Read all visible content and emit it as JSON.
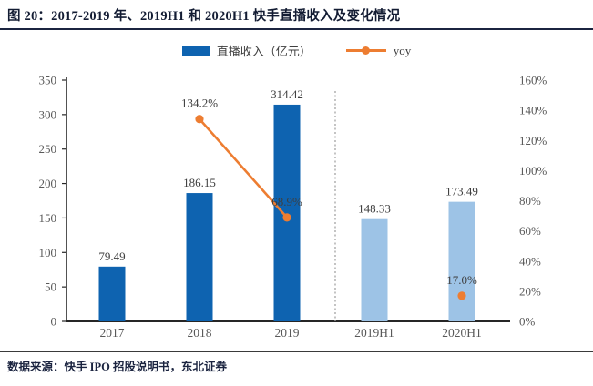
{
  "title": "图 20：2017-2019 年、2019H1 和 2020H1 快手直播收入及变化情况",
  "source_note": "数据来源：快手 IPO 招股说明书，东北证券",
  "legend": {
    "bar_label": "直播收入（亿元）",
    "line_label": "yoy"
  },
  "colors": {
    "bar_dark": "#0e63b0",
    "bar_light": "#9dc3e6",
    "line_orange": "#ed7d31",
    "axis_text": "#595959",
    "value_text": "#3f3f3f",
    "title_text": "#131c33",
    "rule_navy": "#1b2440",
    "separator_gray": "#a3a3a3",
    "axis_line": "#262626"
  },
  "chart_data": {
    "type": "bar",
    "title": "图 20：2017-2019 年、2019H1 和 2020H1 快手直播收入及变化情况",
    "categories": [
      "2017",
      "2018",
      "2019",
      "2019H1",
      "2020H1"
    ],
    "series": [
      {
        "name": "直播收入（亿元）",
        "type": "bar",
        "axis": "left",
        "values": [
          79.49,
          186.15,
          314.42,
          148.33,
          173.49
        ],
        "labels": [
          "79.49",
          "186.15",
          "314.42",
          "148.33",
          "173.49"
        ],
        "bar_styles": [
          "dark",
          "dark",
          "dark",
          "light",
          "light"
        ]
      },
      {
        "name": "yoy",
        "type": "line",
        "axis": "right",
        "values": [
          null,
          134.2,
          68.9,
          null,
          17.0
        ],
        "labels": [
          null,
          "134.2%",
          "68.9%",
          null,
          "17.0%"
        ]
      }
    ],
    "left_axis": {
      "min": 0,
      "max": 350,
      "step": 50,
      "ticks": [
        "350",
        "300",
        "250",
        "200",
        "150",
        "100",
        "50",
        "0"
      ]
    },
    "right_axis": {
      "min": 0,
      "max": 160,
      "step": 20,
      "ticks": [
        "160%",
        "140%",
        "120%",
        "100%",
        "80%",
        "60%",
        "40%",
        "20%",
        "0%"
      ]
    },
    "separator_between": [
      "2019",
      "2019H1"
    ],
    "legend_position": "top-center",
    "grid": false
  }
}
